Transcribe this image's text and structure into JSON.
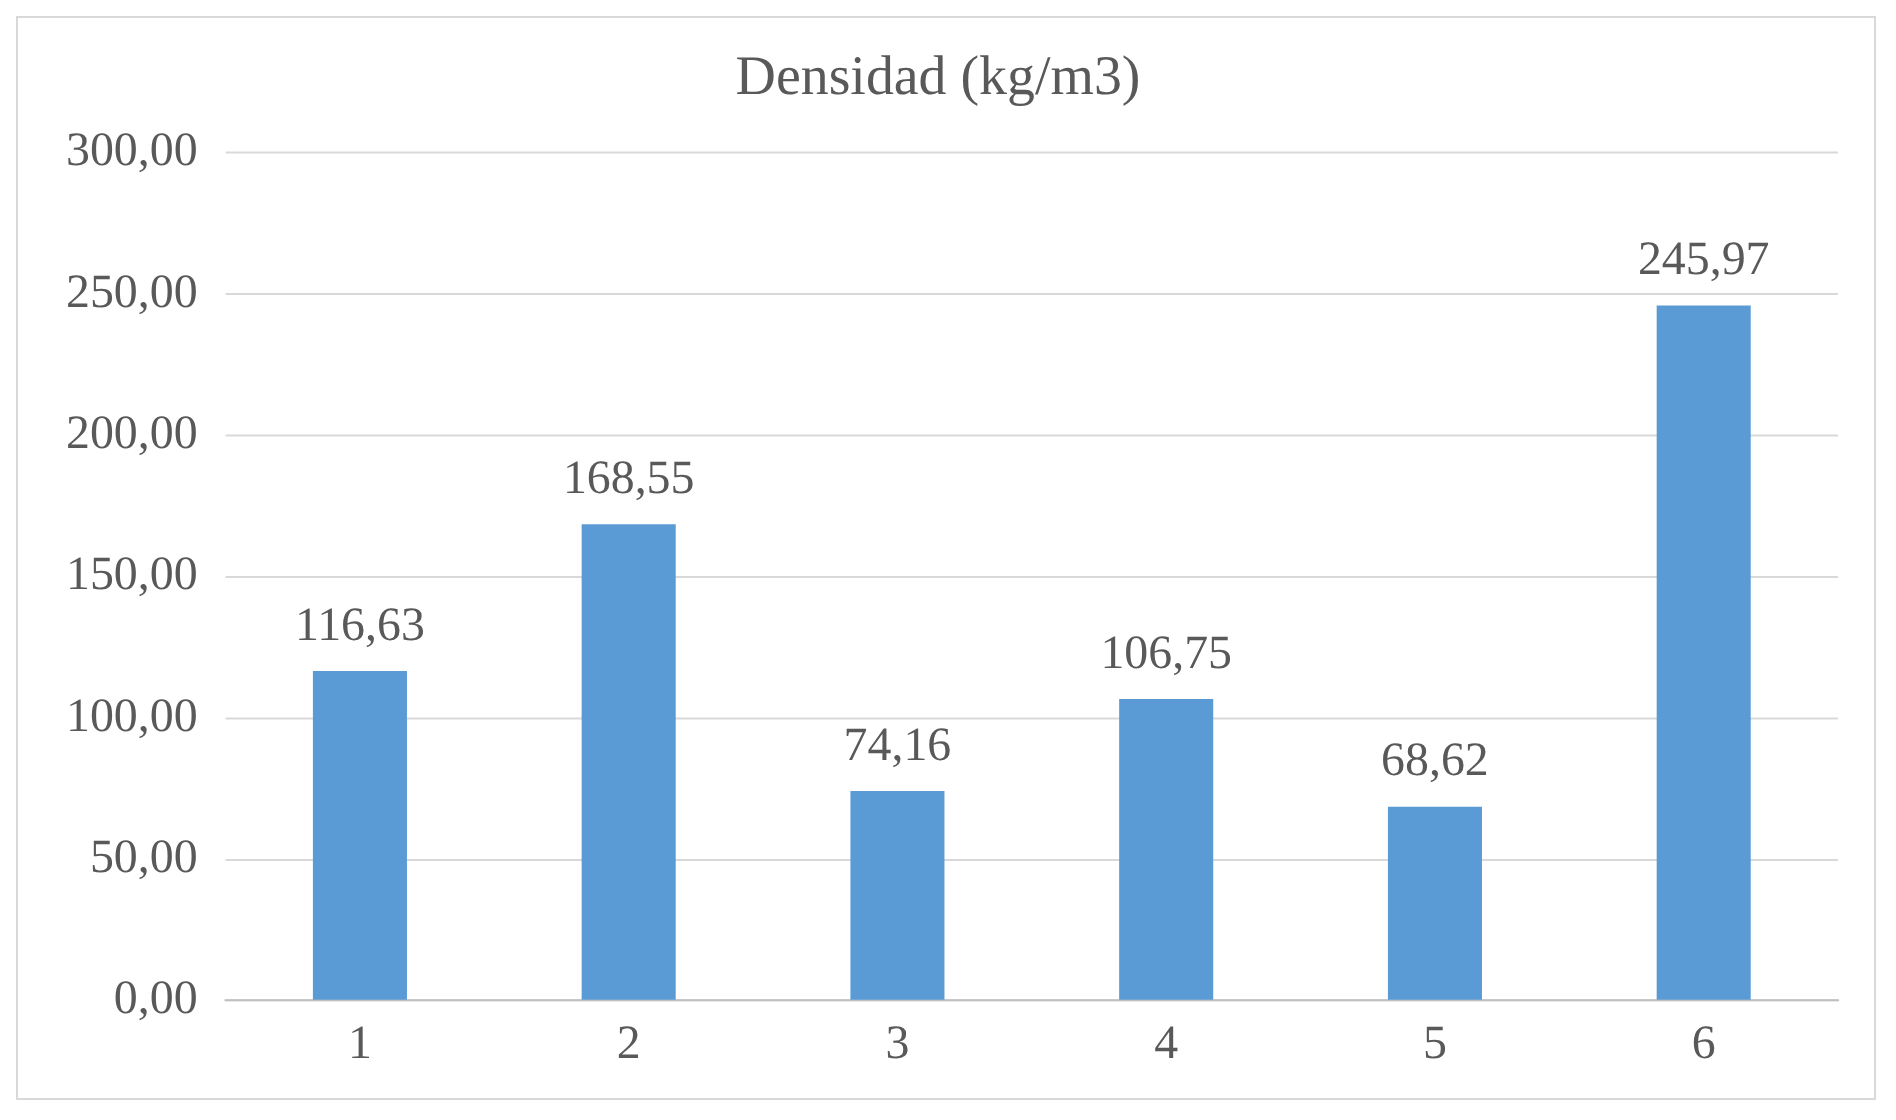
{
  "chart_data": {
    "type": "bar",
    "title": "Densidad (kg/m3)",
    "categories": [
      "1",
      "2",
      "3",
      "4",
      "5",
      "6"
    ],
    "series": [
      {
        "color": "#5b9bd5",
        "values": [
          116.63,
          168.55,
          74.16,
          106.75,
          68.62,
          245.97
        ],
        "value_labels": [
          "116,63",
          "168,55",
          "74,16",
          "106,75",
          "68,62",
          "245,97"
        ]
      }
    ],
    "ylim": [
      0,
      300
    ],
    "yticks": [
      {
        "value": 0,
        "label": "0,00"
      },
      {
        "value": 50,
        "label": "50,00"
      },
      {
        "value": 100,
        "label": "100,00"
      },
      {
        "value": 150,
        "label": "150,00"
      },
      {
        "value": 200,
        "label": "200,00"
      },
      {
        "value": 250,
        "label": "250,00"
      },
      {
        "value": 300,
        "label": "300,00"
      }
    ],
    "grid": "y",
    "legend": false
  }
}
